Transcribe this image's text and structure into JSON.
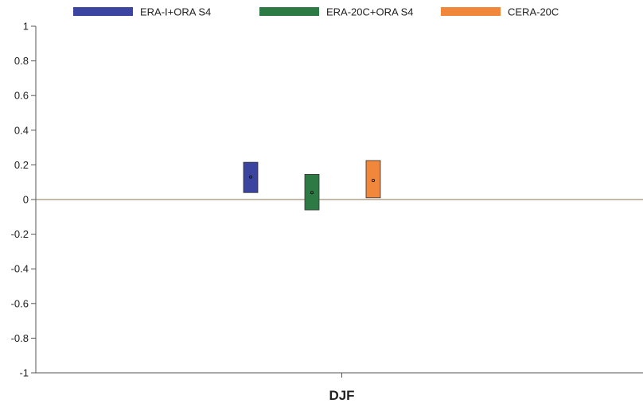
{
  "chart_data": {
    "type": "box",
    "categories": [
      "DJF"
    ],
    "ylim": [
      -1,
      1
    ],
    "yticks": [
      "1",
      "0.8",
      "0.6",
      "0.4",
      "0.2",
      "0",
      "-0.2",
      "-0.4",
      "-0.6",
      "-0.8",
      "-1"
    ],
    "ytick_values": [
      1,
      0.8,
      0.6,
      0.4,
      0.2,
      0,
      -0.2,
      -0.4,
      -0.6,
      -0.8,
      -1
    ],
    "grid": false,
    "legend_position": "top",
    "series": [
      {
        "name": "ERA-I+ORA S4",
        "color": "#3b45a0",
        "low": 0.04,
        "high": 0.215,
        "center": 0.13
      },
      {
        "name": "ERA-20C+ORA S4",
        "color": "#2e7a45",
        "low": -0.06,
        "high": 0.145,
        "center": 0.04
      },
      {
        "name": "CERA-20C",
        "color": "#f0873a",
        "low": 0.01,
        "high": 0.225,
        "center": 0.11
      }
    ]
  }
}
